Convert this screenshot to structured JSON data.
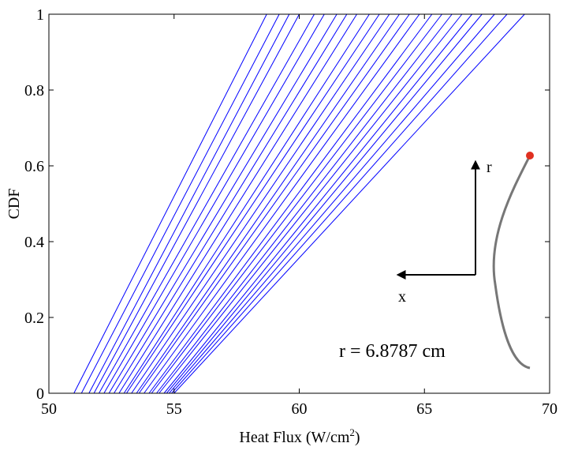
{
  "chart_data": {
    "type": "line",
    "xlabel_parts": [
      "Heat Flux (W/cm",
      "2",
      ")"
    ],
    "ylabel": "CDF",
    "annotation": "r = 6.8787 cm",
    "inset_labels": {
      "r": "r",
      "x": "x"
    },
    "xlim": [
      50,
      70
    ],
    "xticks": [
      50,
      55,
      60,
      65,
      70
    ],
    "ylim": [
      0,
      1
    ],
    "yticks": [
      0,
      0.2,
      0.4,
      0.6,
      0.8,
      1
    ],
    "grid": false,
    "series": [
      {
        "color": "#0000ff",
        "x": [
          51.0,
          58.7
        ],
        "values": [
          0,
          1
        ]
      },
      {
        "color": "#0000ff",
        "x": [
          51.3,
          59.2
        ],
        "values": [
          0,
          1
        ]
      },
      {
        "color": "#0000ff",
        "x": [
          51.6,
          59.6
        ],
        "values": [
          0,
          1
        ]
      },
      {
        "color": "#0000ff",
        "x": [
          51.8,
          60.0
        ],
        "values": [
          0,
          1
        ]
      },
      {
        "color": "#0000ff",
        "x": [
          52.0,
          60.6
        ],
        "values": [
          0,
          1
        ]
      },
      {
        "color": "#0000ff",
        "x": [
          52.2,
          61.0
        ],
        "values": [
          0,
          1
        ]
      },
      {
        "color": "#0000ff",
        "x": [
          52.4,
          61.5
        ],
        "values": [
          0,
          1
        ]
      },
      {
        "color": "#0000ff",
        "x": [
          52.6,
          61.9
        ],
        "values": [
          0,
          1
        ]
      },
      {
        "color": "#0000ff",
        "x": [
          52.8,
          62.3
        ],
        "values": [
          0,
          1
        ]
      },
      {
        "color": "#0000ff",
        "x": [
          53.0,
          62.8
        ],
        "values": [
          0,
          1
        ]
      },
      {
        "color": "#0000ff",
        "x": [
          53.1,
          63.2
        ],
        "values": [
          0,
          1
        ]
      },
      {
        "color": "#0000ff",
        "x": [
          53.3,
          63.6
        ],
        "values": [
          0,
          1
        ]
      },
      {
        "color": "#0000ff",
        "x": [
          53.5,
          64.0
        ],
        "values": [
          0,
          1
        ]
      },
      {
        "color": "#0000ff",
        "x": [
          53.6,
          64.4
        ],
        "values": [
          0,
          1
        ]
      },
      {
        "color": "#0000ff",
        "x": [
          53.8,
          64.8
        ],
        "values": [
          0,
          1
        ]
      },
      {
        "color": "#0000ff",
        "x": [
          54.0,
          65.3
        ],
        "values": [
          0,
          1
        ]
      },
      {
        "color": "#0000ff",
        "x": [
          54.1,
          65.7
        ],
        "values": [
          0,
          1
        ]
      },
      {
        "color": "#0000ff",
        "x": [
          54.3,
          66.1
        ],
        "values": [
          0,
          1
        ]
      },
      {
        "color": "#0000ff",
        "x": [
          54.4,
          66.5
        ],
        "values": [
          0,
          1
        ]
      },
      {
        "color": "#0000ff",
        "x": [
          54.6,
          66.9
        ],
        "values": [
          0,
          1
        ]
      },
      {
        "color": "#0000ff",
        "x": [
          54.7,
          67.3
        ],
        "values": [
          0,
          1
        ]
      },
      {
        "color": "#0000ff",
        "x": [
          54.8,
          67.8
        ],
        "values": [
          0,
          1
        ]
      },
      {
        "color": "#0000ff",
        "x": [
          54.9,
          68.3
        ],
        "values": [
          0,
          1
        ]
      },
      {
        "color": "#0000ff",
        "x": [
          55.0,
          69.0
        ],
        "values": [
          0,
          1
        ]
      }
    ]
  }
}
